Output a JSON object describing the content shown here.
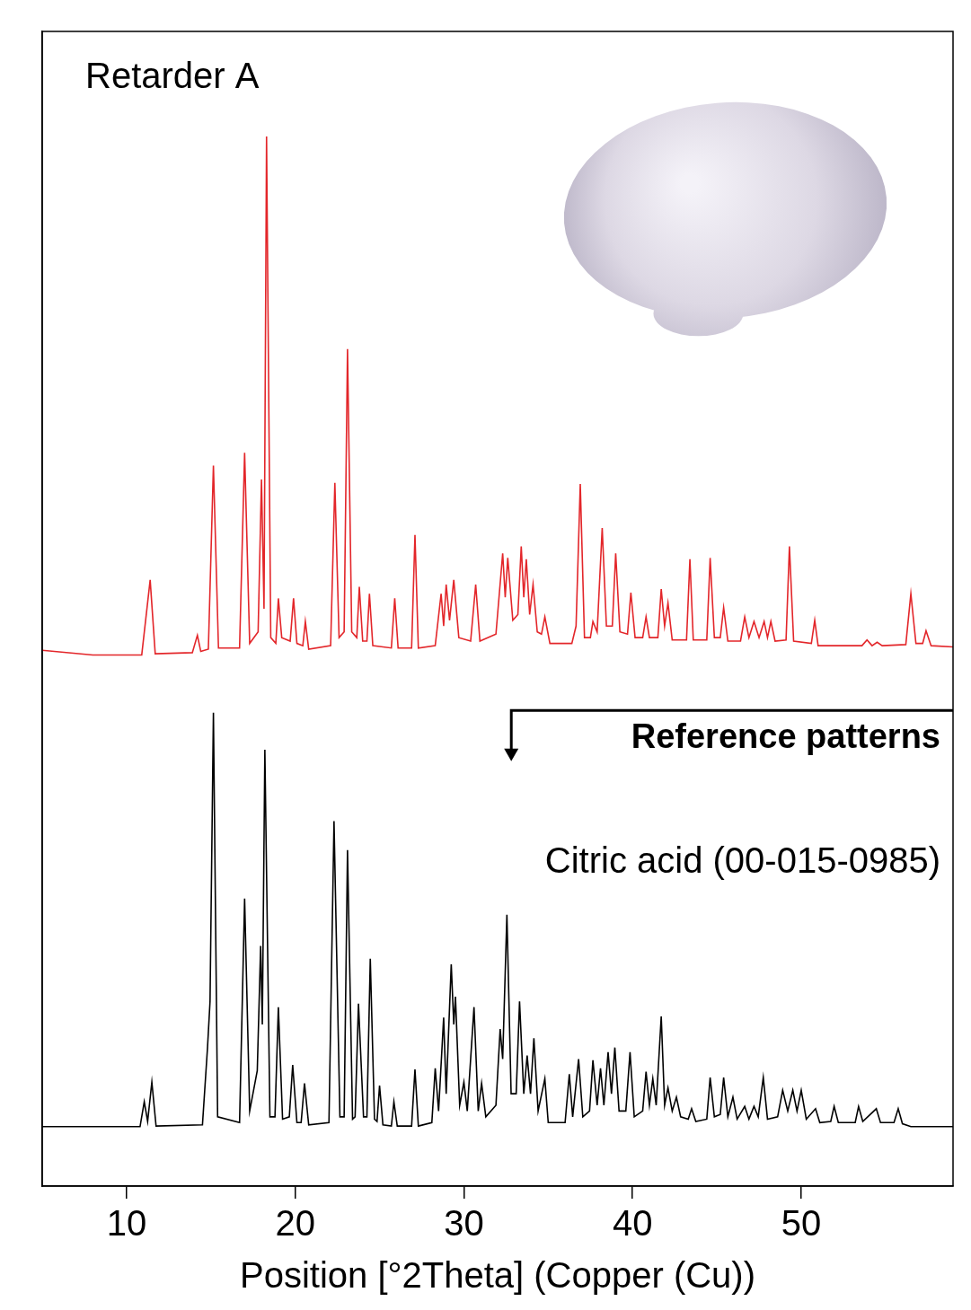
{
  "chart_data": {
    "type": "line",
    "x_label": "Position [°2Theta] (Copper (Cu))",
    "annotation": "Reference patterns",
    "xlim": [
      5,
      59
    ],
    "xticks": [
      10,
      20,
      30,
      40,
      50
    ],
    "ylim": [
      0,
      100
    ],
    "tick_labels": "x",
    "grid": false,
    "series": [
      {
        "name": "Retarder A",
        "color": "#e3262a",
        "line_style": "solid",
        "x": [
          5,
          8,
          10.9,
          11.4,
          11.7,
          13.9,
          14.2,
          14.4,
          14.85,
          15.15,
          15.45,
          16.7,
          17.0,
          17.3,
          17.8,
          18.0,
          18.15,
          18.3,
          18.55,
          18.85,
          19.0,
          19.2,
          19.7,
          19.9,
          20.1,
          20.45,
          20.6,
          20.8,
          22.1,
          22.35,
          22.6,
          22.9,
          23.1,
          23.35,
          23.65,
          23.8,
          24.0,
          24.25,
          24.4,
          24.6,
          25.7,
          25.9,
          26.1,
          26.9,
          27.1,
          27.3,
          28.3,
          28.65,
          28.8,
          28.95,
          29.15,
          29.4,
          29.7,
          30.4,
          30.7,
          30.95,
          31.9,
          32.3,
          32.45,
          32.6,
          32.9,
          33.2,
          33.4,
          33.55,
          33.7,
          33.9,
          34.1,
          34.35,
          34.6,
          34.8,
          35.1,
          36.4,
          36.65,
          36.9,
          37.15,
          37.5,
          37.65,
          37.9,
          38.2,
          38.45,
          38.8,
          39.0,
          39.25,
          39.7,
          39.9,
          40.15,
          40.6,
          40.8,
          41.0,
          41.5,
          41.7,
          41.9,
          42.1,
          42.35,
          43.2,
          43.4,
          43.6,
          44.4,
          44.6,
          44.85,
          45.2,
          45.4,
          45.65,
          46.4,
          46.65,
          46.9,
          47.2,
          47.5,
          47.8,
          48.0,
          48.2,
          48.45,
          49.1,
          49.3,
          49.55,
          50.6,
          50.8,
          51.0,
          53.6,
          53.9,
          54.2,
          54.5,
          54.8,
          56.2,
          56.5,
          56.8,
          57.2,
          57.4,
          57.7,
          59
        ],
        "values": [
          46.4,
          46.0,
          46.0,
          52.5,
          46.1,
          46.2,
          47.7,
          46.3,
          46.5,
          62.4,
          46.6,
          46.6,
          63.5,
          47.0,
          48.0,
          61.2,
          50,
          90.9,
          47.5,
          47.0,
          50.9,
          47.5,
          47.2,
          50.9,
          47.0,
          46.8,
          48.9,
          46.5,
          46.8,
          60.9,
          47.5,
          48.0,
          72.5,
          48.0,
          47.5,
          51.9,
          47.2,
          47.2,
          51.3,
          46.8,
          46.6,
          50.9,
          46.6,
          46.6,
          56.4,
          46.6,
          46.8,
          51.3,
          48.5,
          52.1,
          49,
          52.5,
          47.5,
          47.2,
          52.1,
          47.2,
          47.8,
          54.8,
          51,
          54.4,
          49,
          49.5,
          55.4,
          51,
          54.3,
          49.5,
          52.1,
          48,
          47.8,
          49.3,
          47,
          47,
          48.5,
          60.8,
          47.5,
          47.5,
          48.9,
          48,
          57.0,
          48.5,
          48.5,
          54.8,
          48,
          47.8,
          51.4,
          47.5,
          47.5,
          49.3,
          47.5,
          47.5,
          51.7,
          48.5,
          50.5,
          47.3,
          47.3,
          54.3,
          47.3,
          47.3,
          54.4,
          47.5,
          47.5,
          50.1,
          47.2,
          47.2,
          49.3,
          47.5,
          48.9,
          47.5,
          48.9,
          47.5,
          48.9,
          47.2,
          47.3,
          55.4,
          47.2,
          47.0,
          49.0,
          46.8,
          46.8,
          47.3,
          46.8,
          47.1,
          46.8,
          46.9,
          51.3,
          47.0,
          47.0,
          48.1,
          46.8,
          46.7
        ]
      },
      {
        "name": "Citric acid (00-015-0985)",
        "color": "#000000",
        "line_style": "solid",
        "x": [
          5,
          10.8,
          11.05,
          11.25,
          11.5,
          11.75,
          14.5,
          14.8,
          14.95,
          15.15,
          15.4,
          16.7,
          17.0,
          17.3,
          17.75,
          17.95,
          18.05,
          18.2,
          18.5,
          18.8,
          19.0,
          19.25,
          19.65,
          19.85,
          20.1,
          20.35,
          20.55,
          20.8,
          22.0,
          22.3,
          22.65,
          22.9,
          23.1,
          23.4,
          23.55,
          23.75,
          24.05,
          24.25,
          24.45,
          24.7,
          24.85,
          25.0,
          25.2,
          25.7,
          25.85,
          26.05,
          26.9,
          27.1,
          27.3,
          28.1,
          28.3,
          28.5,
          28.8,
          28.95,
          29.25,
          29.4,
          29.5,
          29.75,
          30.0,
          30.2,
          30.6,
          30.85,
          31.05,
          31.3,
          31.9,
          32.15,
          32.3,
          32.55,
          32.8,
          33.1,
          33.3,
          33.55,
          33.75,
          33.95,
          34.15,
          34.4,
          34.8,
          35.0,
          36.0,
          36.25,
          36.45,
          36.8,
          37.05,
          37.45,
          37.65,
          37.9,
          38.1,
          38.3,
          38.55,
          38.75,
          38.95,
          39.2,
          39.6,
          39.85,
          40.1,
          40.6,
          40.8,
          41.0,
          41.2,
          41.4,
          41.7,
          41.9,
          42.1,
          42.35,
          42.6,
          42.85,
          43.3,
          43.5,
          43.75,
          44.4,
          44.6,
          44.85,
          45.2,
          45.4,
          45.65,
          45.95,
          46.2,
          46.65,
          46.9,
          47.2,
          47.45,
          47.75,
          48.0,
          48.6,
          48.9,
          49.2,
          49.5,
          49.75,
          50.0,
          50.3,
          50.85,
          51.1,
          51.75,
          51.95,
          52.2,
          53.2,
          53.4,
          53.65,
          54.45,
          54.7,
          55.5,
          55.75,
          56.0,
          56.5,
          59
        ],
        "values": [
          5.15,
          5.15,
          7.3,
          5.6,
          9.0,
          5.2,
          5.3,
          12,
          16.0,
          41.0,
          6,
          5.5,
          24.9,
          6.5,
          10,
          20.8,
          14,
          37.8,
          6,
          6,
          15.5,
          5.8,
          6,
          10.5,
          5.5,
          5.5,
          8.9,
          5.3,
          5.5,
          31.6,
          6,
          6,
          29.1,
          5.8,
          6,
          15.8,
          6,
          6,
          19.7,
          5.8,
          5.6,
          8.7,
          5.3,
          5.2,
          7.3,
          5.2,
          5.2,
          10.1,
          5.2,
          5.5,
          10.2,
          6.5,
          14.6,
          8,
          19.2,
          14,
          16.4,
          7,
          9.0,
          6.5,
          15.5,
          6.5,
          8.9,
          6,
          7,
          13.6,
          11,
          23.5,
          8,
          8,
          16.0,
          8,
          11.3,
          8,
          12.8,
          6.5,
          9.3,
          5.5,
          5.5,
          9.7,
          6,
          11.0,
          6,
          6.5,
          10.9,
          7,
          10.2,
          7,
          11.6,
          8,
          12.0,
          6.5,
          6.5,
          11.6,
          6,
          6.5,
          9.9,
          7,
          9.3,
          7,
          14.7,
          7,
          8.5,
          6.5,
          7.7,
          6,
          5.8,
          6.7,
          5.6,
          5.8,
          9.4,
          6,
          6.2,
          9.4,
          6,
          7.7,
          5.8,
          6.9,
          5.8,
          6.9,
          6,
          9.4,
          5.8,
          6,
          8.3,
          6.5,
          8.3,
          6.5,
          8.3,
          5.8,
          6.7,
          5.5,
          5.6,
          6.9,
          5.5,
          5.5,
          6.9,
          5.6,
          6.7,
          5.5,
          5.5,
          6.7,
          5.4,
          5.15,
          5.15
        ]
      }
    ]
  }
}
